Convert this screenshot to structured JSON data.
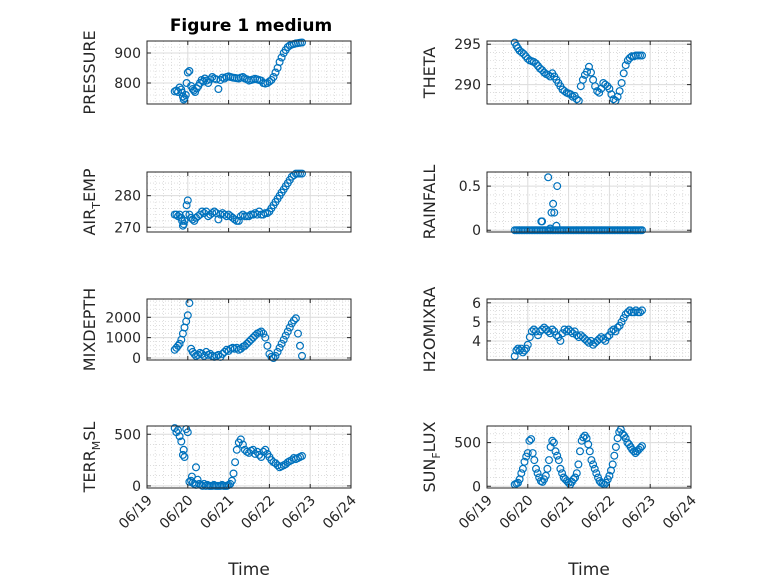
{
  "figure_title": "Figure 1 medium",
  "chart_data": [
    {
      "type": "scatter",
      "ylabel": {
        "base": "PRESSURE",
        "sub": ""
      },
      "ylim": [
        730,
        940
      ],
      "yticks": [
        800,
        900
      ],
      "xticks": [
        "06/19",
        "06/20",
        "06/21",
        "06/22",
        "06/23",
        "06/24"
      ],
      "xlabel": "",
      "grid": true,
      "x": [
        0.68,
        0.72,
        0.76,
        0.8,
        0.84,
        0.86,
        0.88,
        0.9,
        0.92,
        0.95,
        0.97,
        1.0,
        1.04,
        1.08,
        1.12,
        1.15,
        1.18,
        1.22,
        1.26,
        1.3,
        1.34,
        1.38,
        1.42,
        1.46,
        1.5,
        1.55,
        1.6,
        1.65,
        1.7,
        1.75,
        1.8,
        1.85,
        1.9,
        1.95,
        2.0,
        2.05,
        2.1,
        2.15,
        2.2,
        2.25,
        2.3,
        2.35,
        2.4,
        2.45,
        2.5,
        2.55,
        2.6,
        2.65,
        2.7,
        2.75,
        2.8,
        2.85,
        2.9,
        2.95,
        3.0,
        3.05,
        3.1,
        3.15,
        3.2,
        3.25,
        3.3,
        3.35,
        3.4,
        3.45,
        3.5,
        3.55,
        3.6,
        3.65,
        3.7,
        3.75,
        3.8
      ],
      "y": [
        772,
        775,
        770,
        785,
        778,
        768,
        755,
        745,
        750,
        760,
        800,
        835,
        840,
        790,
        780,
        775,
        770,
        782,
        790,
        800,
        810,
        805,
        815,
        808,
        800,
        812,
        820,
        815,
        812,
        780,
        810,
        818,
        815,
        820,
        822,
        820,
        818,
        817,
        816,
        815,
        818,
        820,
        815,
        812,
        808,
        810,
        812,
        814,
        812,
        810,
        808,
        800,
        798,
        800,
        805,
        810,
        820,
        835,
        850,
        870,
        885,
        900,
        910,
        920,
        925,
        928,
        930,
        932,
        933,
        934,
        935
      ]
    },
    {
      "type": "scatter",
      "ylabel": {
        "base": "THETA",
        "sub": ""
      },
      "ylim": [
        287.6,
        295.4
      ],
      "yticks": [
        290,
        295
      ],
      "xticks": [
        "06/19",
        "06/20",
        "06/21",
        "06/22",
        "06/23",
        "06/24"
      ],
      "xlabel": "",
      "grid": true,
      "x": [
        0.68,
        0.72,
        0.76,
        0.8,
        0.85,
        0.9,
        0.95,
        1.0,
        1.05,
        1.1,
        1.15,
        1.2,
        1.25,
        1.3,
        1.35,
        1.4,
        1.45,
        1.5,
        1.55,
        1.6,
        1.65,
        1.7,
        1.75,
        1.8,
        1.85,
        1.9,
        1.95,
        2.0,
        2.05,
        2.1,
        2.15,
        2.2,
        2.25,
        2.3,
        2.35,
        2.4,
        2.45,
        2.5,
        2.55,
        2.6,
        2.65,
        2.7,
        2.75,
        2.8,
        2.85,
        2.9,
        2.95,
        3.0,
        3.05,
        3.1,
        3.15,
        3.2,
        3.25,
        3.3,
        3.35,
        3.4,
        3.45,
        3.5,
        3.55,
        3.6,
        3.65,
        3.7,
        3.75,
        3.8
      ],
      "y": [
        295.2,
        294.8,
        294.5,
        294.2,
        294.0,
        293.8,
        293.5,
        293.2,
        293.0,
        292.9,
        292.8,
        292.6,
        292.3,
        292.0,
        291.8,
        291.5,
        291.3,
        291.2,
        291.0,
        291.4,
        291.0,
        290.6,
        290.2,
        289.8,
        289.4,
        289.2,
        289.0,
        288.9,
        288.8,
        288.5,
        288.6,
        288.2,
        288.0,
        289.8,
        290.6,
        291.2,
        291.6,
        292.2,
        291.5,
        290.6,
        289.8,
        289.2,
        289.0,
        289.5,
        290.2,
        290.0,
        289.8,
        289.5,
        288.8,
        288.2,
        288.0,
        288.5,
        289.2,
        290.2,
        291.4,
        292.4,
        293.0,
        293.3,
        293.5,
        293.5,
        293.6,
        293.6,
        293.6,
        293.6
      ]
    },
    {
      "type": "scatter",
      "ylabel": {
        "base": "AIR",
        "sub": "T",
        "tail": "EMP"
      },
      "ylim": [
        268.5,
        287.5
      ],
      "yticks": [
        270,
        280
      ],
      "xticks": [
        "06/19",
        "06/20",
        "06/21",
        "06/22",
        "06/23",
        "06/24"
      ],
      "xlabel": "",
      "grid": true,
      "x": [
        0.68,
        0.72,
        0.76,
        0.8,
        0.84,
        0.86,
        0.88,
        0.9,
        0.92,
        0.95,
        0.97,
        1.0,
        1.04,
        1.08,
        1.12,
        1.16,
        1.2,
        1.25,
        1.3,
        1.35,
        1.4,
        1.45,
        1.5,
        1.55,
        1.6,
        1.65,
        1.7,
        1.75,
        1.8,
        1.85,
        1.9,
        1.95,
        2.0,
        2.05,
        2.1,
        2.15,
        2.2,
        2.25,
        2.3,
        2.35,
        2.4,
        2.45,
        2.5,
        2.55,
        2.6,
        2.65,
        2.7,
        2.75,
        2.8,
        2.85,
        2.9,
        2.95,
        3.0,
        3.05,
        3.1,
        3.15,
        3.2,
        3.25,
        3.3,
        3.35,
        3.4,
        3.45,
        3.5,
        3.55,
        3.6,
        3.65,
        3.7,
        3.75,
        3.8
      ],
      "y": [
        274,
        274,
        273.5,
        274,
        273,
        272,
        270.5,
        271,
        272,
        274,
        277,
        278.5,
        274,
        273,
        272.5,
        272,
        273,
        273.5,
        274,
        275,
        274.5,
        275,
        273.5,
        274,
        274.5,
        275,
        274.5,
        272.5,
        274,
        274.5,
        274,
        273.5,
        274,
        273.5,
        273,
        272.5,
        272,
        272,
        273.5,
        274,
        273.5,
        273.5,
        273.5,
        274,
        274,
        274.5,
        274,
        275,
        274,
        274,
        274.5,
        274.5,
        275,
        276,
        277,
        278,
        279,
        280,
        281,
        282,
        283,
        284,
        285,
        286,
        286.5,
        287,
        287,
        287,
        287
      ]
    },
    {
      "type": "scatter",
      "ylabel": {
        "base": "RAINFALL",
        "sub": ""
      },
      "ylim": [
        -0.02,
        0.66
      ],
      "yticks": [
        0,
        0.5
      ],
      "xticks": [
        "06/19",
        "06/20",
        "06/21",
        "06/22",
        "06/23",
        "06/24"
      ],
      "xlabel": "",
      "grid": true,
      "x": [
        0.68,
        0.72,
        0.76,
        0.8,
        0.84,
        0.88,
        0.92,
        0.96,
        1.0,
        1.04,
        1.08,
        1.12,
        1.16,
        1.2,
        1.24,
        1.28,
        1.32,
        1.36,
        1.4,
        1.44,
        1.48,
        1.52,
        1.56,
        1.6,
        1.64,
        1.68,
        1.72,
        1.76,
        1.8,
        1.84,
        1.88,
        1.92,
        1.96,
        2.0,
        2.04,
        2.08,
        2.12,
        2.16,
        2.2,
        2.24,
        2.28,
        2.32,
        2.36,
        2.4,
        2.44,
        2.48,
        2.52,
        2.56,
        2.6,
        2.64,
        2.68,
        2.72,
        2.76,
        2.8,
        2.84,
        2.88,
        2.92,
        2.96,
        3.0,
        3.04,
        3.08,
        3.12,
        3.16,
        3.2,
        3.24,
        3.28,
        3.32,
        3.36,
        3.4,
        3.44,
        3.48,
        3.52,
        3.56,
        3.6,
        3.64,
        3.68,
        3.72,
        3.76,
        3.8,
        1.33,
        1.35,
        1.5,
        1.55,
        1.58,
        1.62,
        1.65,
        1.72,
        1.7
      ],
      "y": [
        0,
        0,
        0,
        0,
        0,
        0,
        0,
        0,
        0,
        0,
        0,
        0,
        0,
        0,
        0,
        0,
        0,
        0,
        0,
        0,
        0,
        0,
        0,
        0,
        0,
        0,
        0,
        0,
        0,
        0,
        0,
        0,
        0,
        0,
        0,
        0,
        0,
        0,
        0,
        0,
        0,
        0,
        0,
        0,
        0,
        0,
        0,
        0,
        0,
        0,
        0,
        0,
        0,
        0,
        0,
        0,
        0,
        0,
        0,
        0,
        0,
        0,
        0,
        0,
        0,
        0,
        0,
        0,
        0,
        0,
        0,
        0,
        0,
        0,
        0,
        0,
        0,
        0,
        0,
        0.1,
        0.1,
        0.6,
        0.02,
        0.2,
        0.3,
        0.2,
        0.5,
        0.05
      ]
    },
    {
      "type": "scatter",
      "ylabel": {
        "base": "MIXDEPTH",
        "sub": ""
      },
      "ylim": [
        -100,
        2900
      ],
      "yticks": [
        0,
        1000,
        2000
      ],
      "xticks": [
        "06/19",
        "06/20",
        "06/21",
        "06/22",
        "06/23",
        "06/24"
      ],
      "xlabel": "",
      "grid": true,
      "x": [
        0.68,
        0.72,
        0.76,
        0.8,
        0.84,
        0.88,
        0.92,
        0.96,
        1.0,
        1.04,
        1.08,
        1.12,
        1.16,
        1.2,
        1.25,
        1.3,
        1.35,
        1.4,
        1.45,
        1.5,
        1.55,
        1.6,
        1.65,
        1.7,
        1.75,
        1.8,
        1.85,
        1.9,
        1.95,
        2.0,
        2.05,
        2.1,
        2.15,
        2.2,
        2.25,
        2.3,
        2.35,
        2.4,
        2.45,
        2.5,
        2.55,
        2.6,
        2.65,
        2.7,
        2.75,
        2.8,
        2.85,
        2.9,
        2.95,
        3.0,
        3.05,
        3.1,
        3.15,
        3.2,
        3.25,
        3.3,
        3.35,
        3.4,
        3.45,
        3.5,
        3.55,
        3.6,
        3.65,
        3.7,
        3.75,
        3.8
      ],
      "y": [
        400,
        500,
        600,
        700,
        900,
        1200,
        1500,
        1800,
        2100,
        2700,
        450,
        300,
        200,
        100,
        150,
        250,
        200,
        100,
        300,
        150,
        200,
        100,
        50,
        100,
        150,
        50,
        200,
        300,
        400,
        350,
        450,
        500,
        450,
        500,
        400,
        450,
        550,
        600,
        700,
        800,
        900,
        1000,
        1100,
        1200,
        1250,
        1300,
        1200,
        1000,
        600,
        200,
        50,
        0,
        100,
        300,
        500,
        700,
        900,
        1100,
        1300,
        1500,
        1700,
        1850,
        1950,
        1200,
        600,
        100
      ]
    },
    {
      "type": "scatter",
      "ylabel": {
        "base": "H2OMIXRA",
        "sub": ""
      },
      "ylim": [
        3.0,
        6.2
      ],
      "yticks": [
        4,
        5,
        6
      ],
      "xticks": [
        "06/19",
        "06/20",
        "06/21",
        "06/22",
        "06/23",
        "06/24"
      ],
      "xlabel": "",
      "grid": true,
      "x": [
        0.68,
        0.72,
        0.76,
        0.8,
        0.84,
        0.88,
        0.92,
        0.96,
        1.0,
        1.05,
        1.1,
        1.15,
        1.2,
        1.25,
        1.3,
        1.35,
        1.4,
        1.45,
        1.5,
        1.55,
        1.6,
        1.65,
        1.7,
        1.75,
        1.8,
        1.85,
        1.9,
        1.95,
        2.0,
        2.05,
        2.1,
        2.15,
        2.2,
        2.25,
        2.3,
        2.35,
        2.4,
        2.45,
        2.5,
        2.55,
        2.6,
        2.65,
        2.7,
        2.75,
        2.8,
        2.85,
        2.9,
        2.95,
        3.0,
        3.05,
        3.1,
        3.15,
        3.2,
        3.25,
        3.3,
        3.35,
        3.4,
        3.45,
        3.5,
        3.55,
        3.6,
        3.65,
        3.7,
        3.75,
        3.8
      ],
      "y": [
        3.2,
        3.5,
        3.6,
        3.5,
        3.6,
        3.4,
        3.5,
        3.6,
        3.8,
        4.2,
        4.5,
        4.6,
        4.5,
        4.3,
        4.5,
        4.6,
        4.7,
        4.6,
        4.5,
        4.4,
        4.6,
        4.5,
        4.3,
        4.2,
        4.0,
        4.4,
        4.6,
        4.5,
        4.6,
        4.5,
        4.4,
        4.5,
        4.3,
        4.2,
        4.3,
        4.2,
        4.1,
        4.0,
        3.9,
        4.0,
        3.8,
        3.9,
        4.0,
        4.1,
        4.2,
        4.1,
        4.0,
        4.2,
        4.3,
        4.5,
        4.6,
        4.5,
        4.7,
        4.8,
        5.0,
        5.2,
        5.4,
        5.5,
        5.6,
        5.5,
        5.5,
        5.6,
        5.5,
        5.5,
        5.6
      ]
    },
    {
      "type": "scatter",
      "ylabel": {
        "base": "TERR",
        "sub": "M",
        "tail": "SL"
      },
      "ylim": [
        -20,
        580
      ],
      "yticks": [
        0,
        500
      ],
      "xticks": [
        "06/19",
        "06/20",
        "06/21",
        "06/22",
        "06/23",
        "06/24"
      ],
      "xlabel": "Time",
      "grid": true,
      "x": [
        0.68,
        0.72,
        0.76,
        0.8,
        0.84,
        0.88,
        0.9,
        0.92,
        0.96,
        1.0,
        1.04,
        1.08,
        1.12,
        1.16,
        1.2,
        1.24,
        1.28,
        1.32,
        1.36,
        1.4,
        1.44,
        1.48,
        1.52,
        1.56,
        1.6,
        1.64,
        1.68,
        1.72,
        1.76,
        1.8,
        1.84,
        1.88,
        1.92,
        1.96,
        2.0,
        2.04,
        2.08,
        2.12,
        2.16,
        2.2,
        2.25,
        2.3,
        2.35,
        2.4,
        2.45,
        2.5,
        2.55,
        2.6,
        2.65,
        2.7,
        2.75,
        2.8,
        2.85,
        2.9,
        2.95,
        3.0,
        3.05,
        3.1,
        3.15,
        3.2,
        3.25,
        3.3,
        3.35,
        3.4,
        3.45,
        3.5,
        3.55,
        3.6,
        3.65,
        3.7,
        3.75,
        3.8,
        1.2,
        1.1
      ],
      "y": [
        560,
        520,
        540,
        480,
        430,
        300,
        350,
        280,
        550,
        520,
        40,
        50,
        30,
        20,
        10,
        60,
        20,
        10,
        0,
        20,
        0,
        10,
        0,
        0,
        0,
        10,
        0,
        0,
        0,
        0,
        10,
        0,
        0,
        0,
        10,
        20,
        50,
        120,
        230,
        350,
        420,
        450,
        400,
        350,
        330,
        320,
        340,
        350,
        310,
        330,
        300,
        280,
        330,
        350,
        310,
        280,
        250,
        230,
        220,
        200,
        180,
        190,
        200,
        210,
        230,
        240,
        250,
        270,
        260,
        270,
        280,
        290,
        180,
        90
      ]
    },
    {
      "type": "scatter",
      "ylabel": {
        "base": "SUN",
        "sub": "F",
        "tail": "LUX"
      },
      "ylim": [
        -20,
        690
      ],
      "yticks": [
        0,
        500
      ],
      "xticks": [
        "06/19",
        "06/20",
        "06/21",
        "06/22",
        "06/23",
        "06/24"
      ],
      "xlabel": "Time",
      "grid": true,
      "x": [
        0.68,
        0.72,
        0.76,
        0.8,
        0.84,
        0.88,
        0.92,
        0.96,
        1.0,
        1.04,
        1.08,
        1.12,
        1.16,
        1.2,
        1.24,
        1.28,
        1.32,
        1.36,
        1.4,
        1.44,
        1.48,
        1.52,
        1.56,
        1.6,
        1.64,
        1.68,
        1.72,
        1.76,
        1.8,
        1.84,
        1.88,
        1.92,
        1.96,
        2.0,
        2.04,
        2.08,
        2.12,
        2.16,
        2.2,
        2.24,
        2.28,
        2.32,
        2.36,
        2.4,
        2.44,
        2.48,
        2.52,
        2.56,
        2.6,
        2.64,
        2.68,
        2.72,
        2.76,
        2.8,
        2.84,
        2.88,
        2.92,
        2.96,
        3.0,
        3.04,
        3.08,
        3.12,
        3.16,
        3.2,
        3.24,
        3.28,
        3.32,
        3.36,
        3.4,
        3.44,
        3.48,
        3.52,
        3.56,
        3.6,
        3.64,
        3.68,
        3.72,
        3.76,
        3.8
      ],
      "y": [
        20,
        30,
        40,
        80,
        150,
        200,
        280,
        340,
        380,
        520,
        540,
        380,
        300,
        200,
        150,
        100,
        60,
        50,
        80,
        120,
        200,
        300,
        450,
        520,
        500,
        400,
        350,
        300,
        200,
        150,
        100,
        80,
        60,
        40,
        20,
        50,
        80,
        100,
        150,
        250,
        400,
        520,
        560,
        580,
        550,
        480,
        400,
        300,
        250,
        200,
        150,
        100,
        60,
        40,
        30,
        20,
        40,
        80,
        120,
        180,
        250,
        350,
        450,
        550,
        620,
        650,
        600,
        580,
        550,
        500,
        480,
        450,
        420,
        400,
        380,
        400,
        420,
        440,
        460
      ]
    }
  ]
}
